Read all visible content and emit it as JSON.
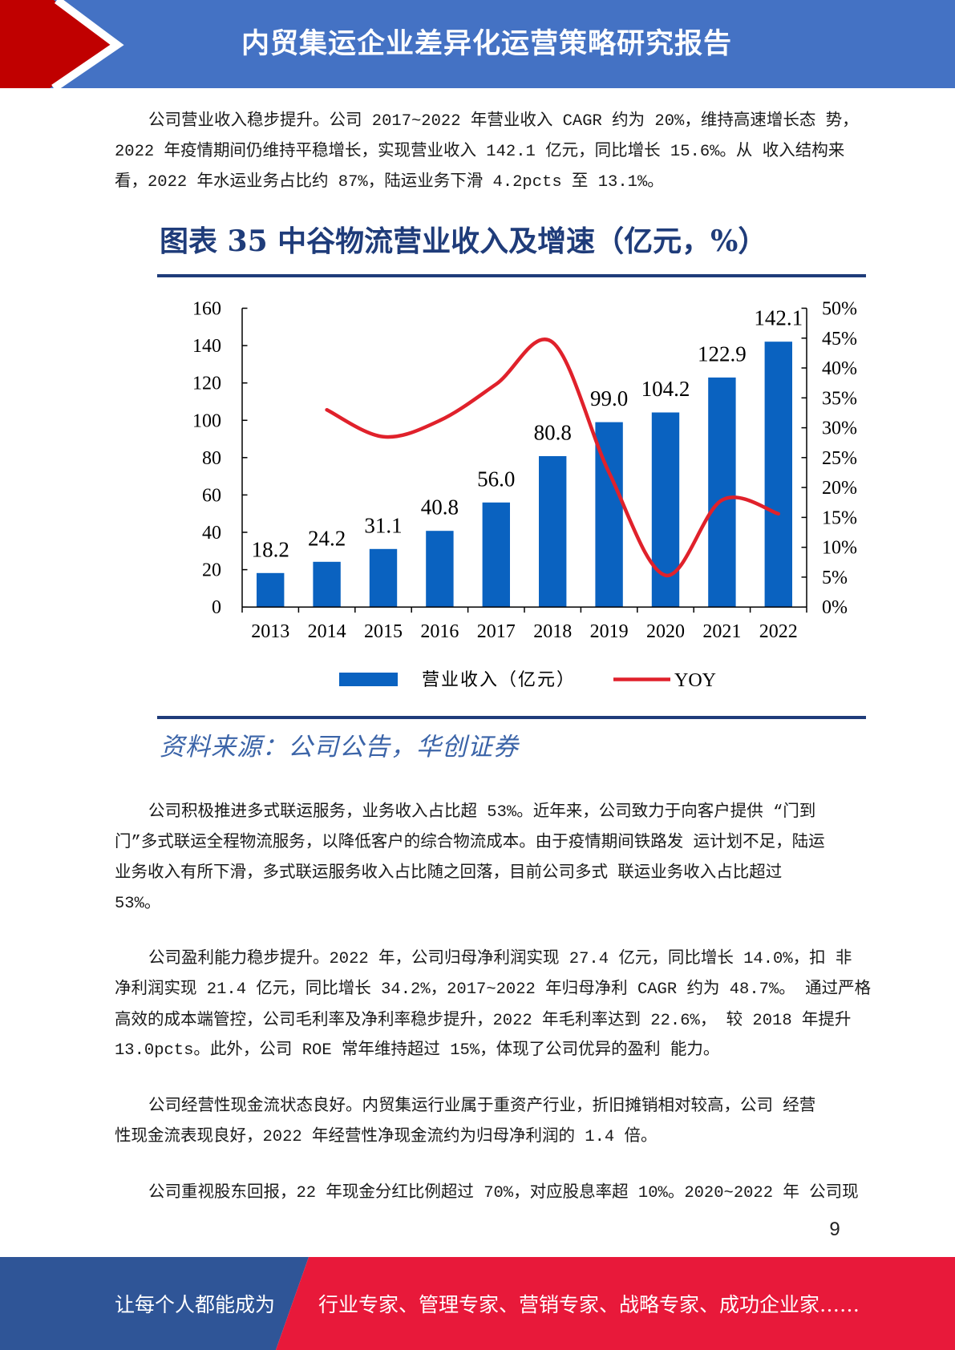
{
  "theme": {
    "header_blue": "#4472c4",
    "header_red": "#c00000",
    "footer_blue": "#2f5597",
    "footer_red": "#e8193a",
    "caption_color": "#1f3c7a",
    "source_color": "#3b64a8",
    "text_color": "#1a1a1a"
  },
  "header": {
    "title": "内贸集运企业差异化运营策略研究报告",
    "logo_icon": "red-chevron-icon"
  },
  "body": {
    "paragraphs": [
      {
        "lines": [
          "公司营业收入稳步提升。公司 2017~2022 年营业收入 CAGR 约为 20%，维持高速增长态 势，",
          "2022 年疫情期间仍维持平稳增长，实现营业收入 142.1 亿元，同比增长 15.6%。从 收入结构来",
          "看，2022 年水运业务占比约 87%，陆运业务下滑 4.2pcts 至 13.1%。"
        ]
      },
      {
        "lines": [
          "公司积极推进多式联运服务，业务收入占比超 53%。近年来，公司致力于向客户提供 “门到",
          "门”多式联运全程物流服务，以降低客户的综合物流成本。由于疫情期间铁路发 运计划不足，陆运",
          "业务收入有所下滑，多式联运服务收入占比随之回落，目前公司多式 联运业务收入占比超过",
          "53%。"
        ]
      },
      {
        "lines": [
          "公司盈利能力稳步提升。2022 年，公司归母净利润实现 27.4 亿元，同比增长 14.0%，扣 非",
          "净利润实现 21.4 亿元，同比增长 34.2%，2017~2022 年归母净利 CAGR 约为 48.7%。 通过严格",
          "高效的成本端管控，公司毛利率及净利率稳步提升，2022 年毛利率达到 22.6%， 较 2018 年提升",
          "13.0pcts。此外，公司 ROE 常年维持超过 15%，体现了公司优异的盈利 能力。"
        ]
      },
      {
        "lines": [
          "公司经营性现金流状态良好。内贸集运行业属于重资产行业，折旧摊销相对较高，公司 经营",
          "性现金流表现良好，2022 年经营性净现金流约为归母净利润的 1.4 倍。"
        ]
      },
      {
        "lines": [
          "公司重视股东回报，22 年现金分红比例超过 70%，对应股息率超 10%。2020~2022 年 公司现"
        ]
      }
    ]
  },
  "chart_data": {
    "type": "bar",
    "title": "图表 35 中谷物流营业收入及增速（亿元，%）",
    "source": "资料来源：公司公告，华创证券",
    "categories": [
      "2013",
      "2014",
      "2015",
      "2016",
      "2017",
      "2018",
      "2019",
      "2020",
      "2021",
      "2022"
    ],
    "series": [
      {
        "name": "营业收入（亿元）",
        "type": "bar",
        "axis": "left",
        "values": [
          18.2,
          24.2,
          31.1,
          40.8,
          56.0,
          80.8,
          99.0,
          104.2,
          122.9,
          142.1
        ],
        "data_labels": [
          "18.2",
          "24.2",
          "31.1",
          "40.8",
          "56.0",
          "80.8",
          "99.0",
          "104.2",
          "122.9",
          "142.1"
        ],
        "color": "#0a62c0"
      },
      {
        "name": "YOY",
        "type": "line",
        "axis": "right",
        "smooth": true,
        "values": [
          null,
          33.0,
          28.5,
          31.2,
          37.3,
          44.3,
          22.5,
          5.3,
          17.9,
          15.6
        ],
        "color": "#e0212b"
      }
    ],
    "y_left": {
      "range": [
        0,
        160
      ],
      "ticks": [
        "0",
        "20",
        "40",
        "60",
        "80",
        "100",
        "120",
        "140",
        "160"
      ]
    },
    "y_right": {
      "range": [
        0,
        50
      ],
      "ticks": [
        "0%",
        "5%",
        "10%",
        "15%",
        "20%",
        "25%",
        "30%",
        "35%",
        "40%",
        "45%",
        "50%"
      ]
    },
    "legend_position": "bottom",
    "grid": false
  },
  "page_number": "9",
  "footer": {
    "left_text": "让每个人都能成为",
    "right_text": "行业专家、管理专家、营销专家、战略专家、成功企业家……"
  }
}
